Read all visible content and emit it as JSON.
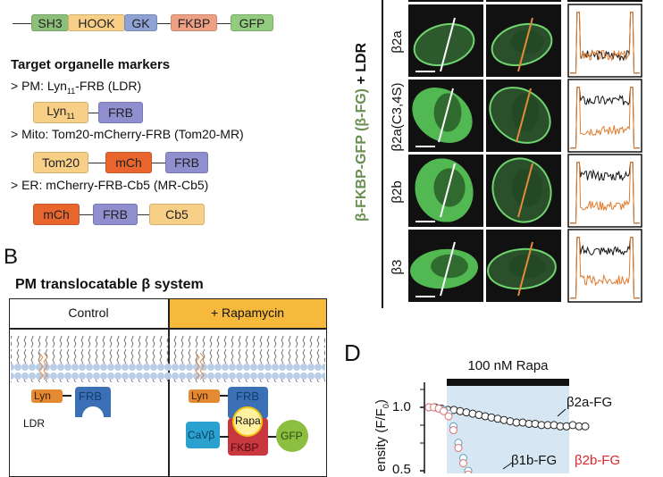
{
  "panel_a": {
    "construct_domains": [
      "SH3",
      "HOOK",
      "GK",
      "FKBP",
      "GFP"
    ],
    "markers_title": "Target organelle markers",
    "pm_label": "> PM: Lyn",
    "pm_sub": "11",
    "pm_rest": "-FRB (LDR)",
    "pm_domains": [
      "Lyn",
      "FRB"
    ],
    "pm_domain_sub": "11",
    "mito_label": "> Mito: Tom20-mCherry-FRB (Tom20-MR)",
    "mito_domains": [
      "Tom20",
      "mCh",
      "FRB"
    ],
    "er_label": "> ER: mCherry-FRB-Cb5 (MR-Cb5)",
    "er_domains": [
      "mCh",
      "FRB",
      "Cb5"
    ],
    "colors": {
      "SH3": "#8cc07a",
      "HOOK": "#f7cf86",
      "GK": "#8ea2d4",
      "FKBP": "#eea084",
      "GFP": "#93cc7e",
      "FRB": "#8f8fcf",
      "mCh": "#e8662e"
    }
  },
  "panel_b": {
    "letter": "B",
    "title": "PM translocatable β system",
    "control": "Control",
    "rapamycin": "+ Rapamycin",
    "lyn": "Lyn",
    "frb": "FRB",
    "ldr": "LDR",
    "rapa": "Rapa",
    "cavb": "CaVβ",
    "fkbp": "FKBP",
    "gfp": "GFP",
    "header_color": "#f6b93b"
  },
  "panel_c": {
    "side_label_green": "β-FKBP-GFP (β-FG)",
    "side_label_black": " + LDR",
    "rows": [
      "β2a",
      "β2a(C3,4S)",
      "β2b",
      "β3"
    ]
  },
  "panel_d": {
    "letter": "D",
    "ylabel": "ensity (F/F",
    "ylabel_sub": "0",
    "ylabel_end": ")",
    "chart_data": {
      "type": "scatter",
      "annotation": "100 nM Rapa",
      "yticks": [
        "1.0",
        "0.5"
      ],
      "series": [
        {
          "name": "β2a-FG",
          "values": [
            1.0,
            1.0,
            0.99,
            0.98,
            0.98,
            0.97,
            0.96,
            0.95,
            0.94,
            0.93,
            0.92,
            0.91,
            0.9,
            0.89,
            0.88,
            0.88,
            0.87,
            0.87,
            0.86,
            0.86,
            0.86,
            0.85,
            0.85,
            0.86,
            0.85,
            0.85
          ]
        },
        {
          "name": "β1b-FG",
          "values": [
            1.0,
            1.0,
            0.99,
            0.98,
            0.95,
            0.85,
            0.72,
            0.6,
            0.5
          ]
        },
        {
          "name": "β2b-FG",
          "values": [
            1.0,
            1.0,
            0.99,
            0.97,
            0.93,
            0.82,
            0.68,
            0.56,
            0.47
          ]
        }
      ]
    }
  }
}
